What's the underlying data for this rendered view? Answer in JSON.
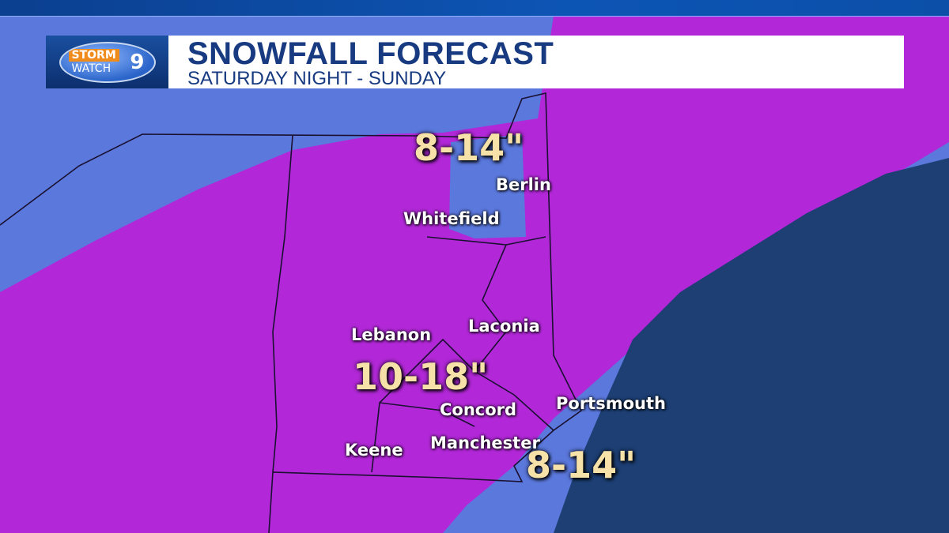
{
  "header": {
    "logo": {
      "line1": "STORM",
      "line2": "WATCH",
      "number": "9"
    },
    "title": "SNOWFALL FORECAST",
    "subtitle": "SATURDAY NIGHT  - SUNDAY"
  },
  "colors": {
    "background_band": "#5b78dc",
    "heavy_band": "#b228d8",
    "ocean": "#1d3f74",
    "amount_text": "#f6e2a8"
  },
  "amounts": [
    {
      "label": "8-14\""
    },
    {
      "label": "10-18\""
    },
    {
      "label": "8-14\""
    }
  ],
  "cities": [
    "Berlin",
    "Whitefield",
    "Lebanon",
    "Laconia",
    "Concord",
    "Portsmouth",
    "Manchester",
    "Keene"
  ]
}
